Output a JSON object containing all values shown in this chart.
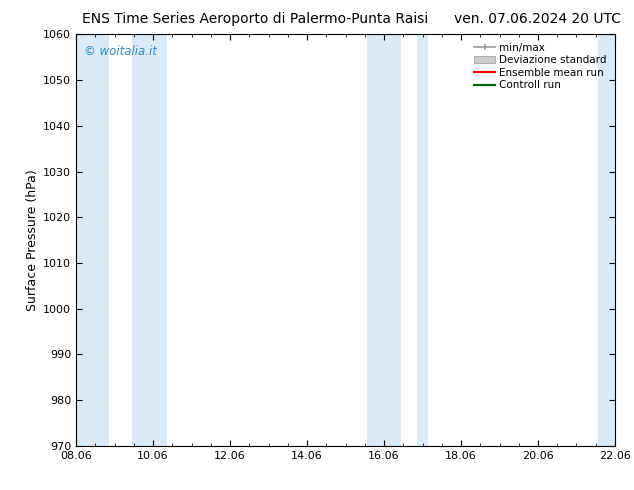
{
  "title_left": "ENS Time Series Aeroporto di Palermo-Punta Raisi",
  "title_right": "ven. 07.06.2024 20 UTC",
  "ylabel": "Surface Pressure (hPa)",
  "ylim": [
    970,
    1060
  ],
  "yticks": [
    970,
    980,
    990,
    1000,
    1010,
    1020,
    1030,
    1040,
    1050,
    1060
  ],
  "xlim_start": 0.0,
  "xlim_end": 14.0,
  "xtick_labels": [
    "08.06",
    "10.06",
    "12.06",
    "14.06",
    "16.06",
    "18.06",
    "20.06",
    "22.06"
  ],
  "xtick_positions": [
    0.0,
    2.0,
    4.0,
    6.0,
    8.0,
    10.0,
    12.0,
    14.0
  ],
  "shaded_bands": [
    {
      "x_start": 0.0,
      "x_end": 0.85,
      "color": "#daeaf7"
    },
    {
      "x_start": 1.45,
      "x_end": 2.35,
      "color": "#daeaf7"
    },
    {
      "x_start": 7.55,
      "x_end": 8.45,
      "color": "#daeaf7"
    },
    {
      "x_start": 8.85,
      "x_end": 9.15,
      "color": "#daeaf7"
    },
    {
      "x_start": 13.55,
      "x_end": 14.0,
      "color": "#daeaf7"
    }
  ],
  "legend_labels": [
    "min/max",
    "Deviazione standard",
    "Ensemble mean run",
    "Controll run"
  ],
  "minmax_color": "#999999",
  "devstd_color": "#cccccc",
  "ensemble_color": "#ff0000",
  "controll_color": "#006600",
  "watermark_text": "© woitalia.it",
  "watermark_color": "#3388bb",
  "background_color": "#ffffff",
  "title_fontsize": 10,
  "axis_label_fontsize": 9,
  "tick_fontsize": 8,
  "legend_fontsize": 7.5
}
